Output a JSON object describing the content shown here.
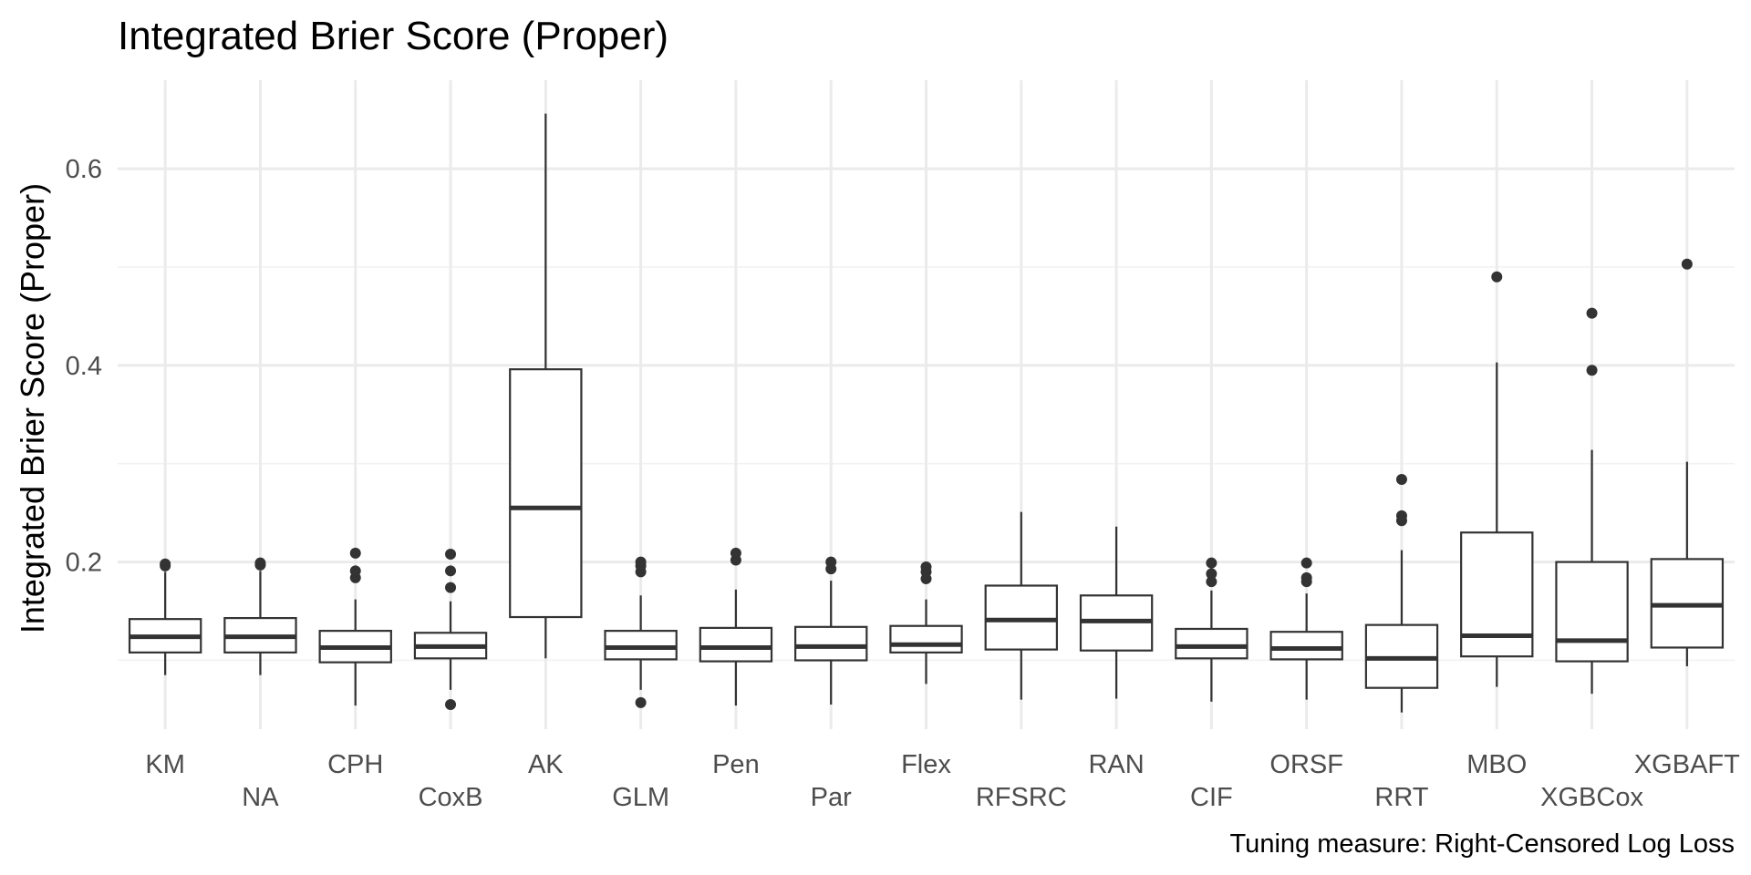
{
  "chart_data": {
    "type": "box",
    "title": "Integrated Brier Score (Proper)",
    "ylabel": "Integrated Brier Score (Proper)",
    "xlabel": "",
    "caption": "Tuning measure: Right-Censored Log Loss",
    "ylim": [
      0.03,
      0.69
    ],
    "yticks": [
      0.2,
      0.4,
      0.6
    ],
    "ytick_labels": [
      "0.2",
      "0.4",
      "0.6"
    ],
    "grid": true,
    "legend": "none",
    "categories": [
      "KM",
      "NA",
      "CPH",
      "CoxB",
      "AK",
      "GLM",
      "Pen",
      "Par",
      "Flex",
      "RFSRC",
      "RAN",
      "CIF",
      "ORSF",
      "RRT",
      "MBO",
      "XGBCox",
      "XGBAFT"
    ],
    "boxes": [
      {
        "min": 0.085,
        "q1": 0.108,
        "median": 0.124,
        "q3": 0.142,
        "max": 0.19,
        "outliers": [
          0.196,
          0.198
        ]
      },
      {
        "min": 0.085,
        "q1": 0.108,
        "median": 0.124,
        "q3": 0.143,
        "max": 0.191,
        "outliers": [
          0.197,
          0.199
        ]
      },
      {
        "min": 0.054,
        "q1": 0.098,
        "median": 0.113,
        "q3": 0.13,
        "max": 0.162,
        "outliers": [
          0.184,
          0.191,
          0.209
        ]
      },
      {
        "min": 0.07,
        "q1": 0.102,
        "median": 0.114,
        "q3": 0.128,
        "max": 0.16,
        "outliers": [
          0.055,
          0.174,
          0.191,
          0.208
        ]
      },
      {
        "min": 0.102,
        "q1": 0.144,
        "median": 0.255,
        "q3": 0.396,
        "max": 0.656,
        "outliers": []
      },
      {
        "min": 0.07,
        "q1": 0.101,
        "median": 0.113,
        "q3": 0.13,
        "max": 0.166,
        "outliers": [
          0.057,
          0.19,
          0.196,
          0.2
        ]
      },
      {
        "min": 0.054,
        "q1": 0.099,
        "median": 0.113,
        "q3": 0.133,
        "max": 0.172,
        "outliers": [
          0.202,
          0.209
        ]
      },
      {
        "min": 0.055,
        "q1": 0.1,
        "median": 0.114,
        "q3": 0.134,
        "max": 0.181,
        "outliers": [
          0.193,
          0.2
        ]
      },
      {
        "min": 0.076,
        "q1": 0.108,
        "median": 0.116,
        "q3": 0.135,
        "max": 0.162,
        "outliers": [
          0.183,
          0.19,
          0.195
        ]
      },
      {
        "min": 0.06,
        "q1": 0.111,
        "median": 0.141,
        "q3": 0.176,
        "max": 0.251,
        "outliers": []
      },
      {
        "min": 0.061,
        "q1": 0.11,
        "median": 0.14,
        "q3": 0.166,
        "max": 0.236,
        "outliers": []
      },
      {
        "min": 0.058,
        "q1": 0.102,
        "median": 0.114,
        "q3": 0.132,
        "max": 0.171,
        "outliers": [
          0.18,
          0.188,
          0.199
        ]
      },
      {
        "min": 0.06,
        "q1": 0.101,
        "median": 0.112,
        "q3": 0.129,
        "max": 0.168,
        "outliers": [
          0.18,
          0.184,
          0.199
        ]
      },
      {
        "min": 0.047,
        "q1": 0.072,
        "median": 0.102,
        "q3": 0.136,
        "max": 0.212,
        "outliers": [
          0.242,
          0.247,
          0.284
        ]
      },
      {
        "min": 0.073,
        "q1": 0.104,
        "median": 0.125,
        "q3": 0.23,
        "max": 0.403,
        "outliers": [
          0.49
        ]
      },
      {
        "min": 0.066,
        "q1": 0.099,
        "median": 0.12,
        "q3": 0.2,
        "max": 0.314,
        "outliers": [
          0.395,
          0.453
        ]
      },
      {
        "min": 0.094,
        "q1": 0.113,
        "median": 0.156,
        "q3": 0.203,
        "max": 0.302,
        "outliers": [
          0.503
        ]
      }
    ]
  }
}
